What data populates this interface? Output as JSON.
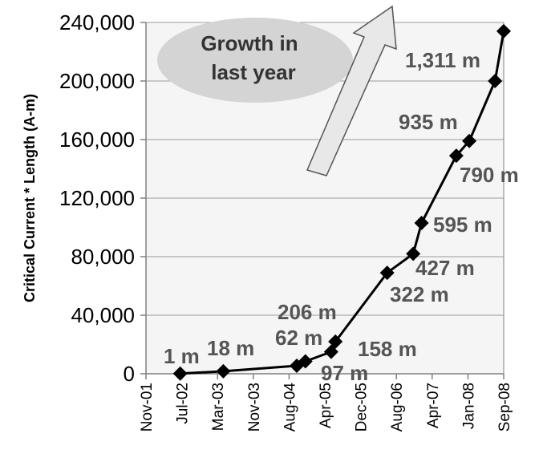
{
  "chart_data": {
    "type": "line",
    "title": "",
    "xlabel": "",
    "ylabel": "Critical Current * Length (A-m)",
    "x_tick_labels": [
      "Nov-01",
      "Jul-02",
      "Mar-03",
      "Nov-03",
      "Aug-04",
      "Apr-05",
      "Dec-05",
      "Aug-06",
      "Apr-07",
      "Jan-08",
      "Sep-08"
    ],
    "y_tick_labels": [
      "0",
      "40,000",
      "80,000",
      "120,000",
      "160,000",
      "200,000",
      "240,000"
    ],
    "ylim": [
      0,
      240000
    ],
    "xlim": [
      "2001-11-01",
      "2008-10-01"
    ],
    "grid": true,
    "legend": "none",
    "series": [
      {
        "color": "#000000",
        "marker": "diamond",
        "points": [
          {
            "x": "2002-07-01",
            "y": 100
          },
          {
            "x": "2003-05-01",
            "y": 1700
          },
          {
            "x": "2004-10-01",
            "y": 5500
          },
          {
            "x": "2004-12-01",
            "y": 8500
          },
          {
            "x": "2005-06-01",
            "y": 15000
          },
          {
            "x": "2005-07-01",
            "y": 22000
          },
          {
            "x": "2006-07-01",
            "y": 69000
          },
          {
            "x": "2007-01-01",
            "y": 82000
          },
          {
            "x": "2007-03-01",
            "y": 103000
          },
          {
            "x": "2007-11-01",
            "y": 149000
          },
          {
            "x": "2008-02-01",
            "y": 159000
          },
          {
            "x": "2008-08-01",
            "y": 200000
          },
          {
            "x": "2008-10-01",
            "y": 234000
          }
        ]
      }
    ],
    "annotations": [
      {
        "text": "1 m"
      },
      {
        "text": "18 m"
      },
      {
        "text": "62 m"
      },
      {
        "text": "206 m"
      },
      {
        "text": "97 m"
      },
      {
        "text": "158 m"
      },
      {
        "text": "322 m"
      },
      {
        "text": "427 m"
      },
      {
        "text": "595 m"
      },
      {
        "text": "790 m"
      },
      {
        "text": "935 m"
      },
      {
        "text": "1,311 m"
      }
    ],
    "callout": {
      "text_line1": "Growth in",
      "text_line2": "last year",
      "ellipse_color": "#d4d4d4",
      "arrow_color": "#e8e8e8"
    },
    "plot_background": "#f5f5f5",
    "gridline_color": "#9a9a9a"
  }
}
